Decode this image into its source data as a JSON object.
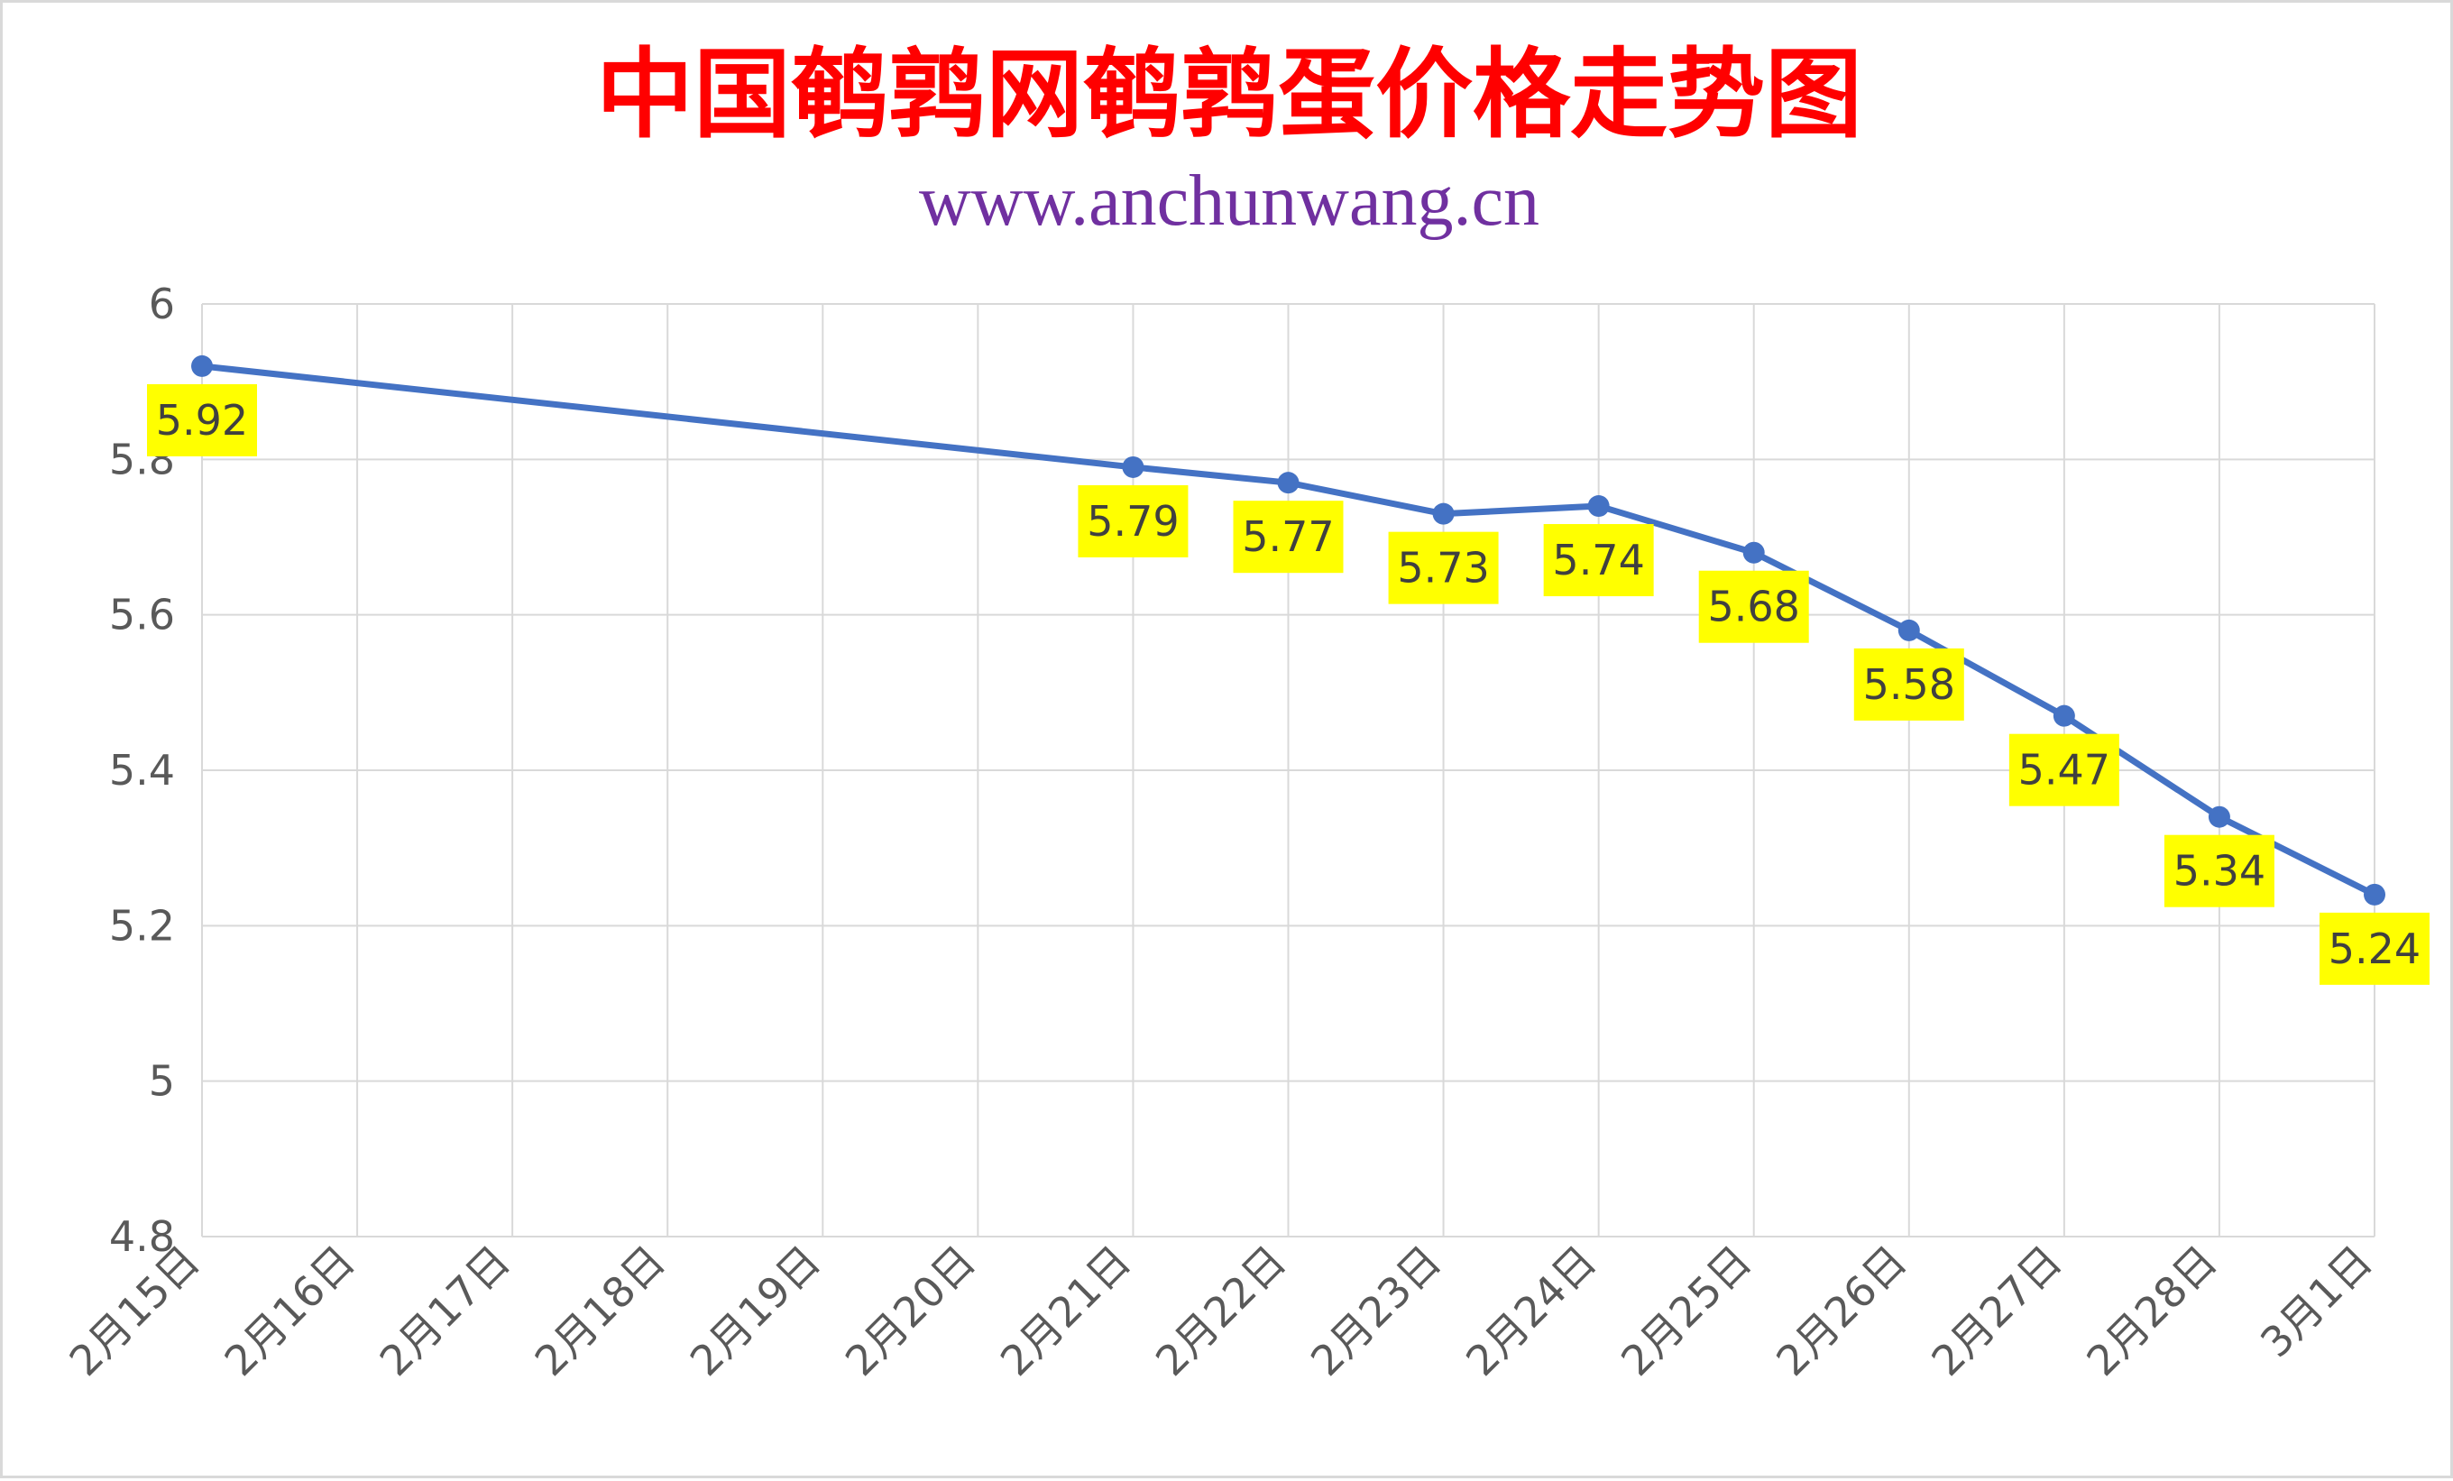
{
  "title": "中国鹌鹑网鹌鹑蛋价格走势图",
  "subtitle": "www.anchunwang.cn",
  "colors": {
    "title": "#ff0000",
    "subtitle": "#7030a0",
    "line": "#4472c4",
    "label_background": "#ffff00",
    "grid": "#d9d9d9",
    "tick_text": "#595959"
  },
  "chart_data": {
    "type": "line",
    "categories": [
      "2月15日",
      "2月16日",
      "2月17日",
      "2月18日",
      "2月19日",
      "2月20日",
      "2月21日",
      "2月22日",
      "2月23日",
      "2月24日",
      "2月25日",
      "2月26日",
      "2月27日",
      "2月28日",
      "3月1日"
    ],
    "series": [
      {
        "values": [
          5.92,
          null,
          null,
          null,
          null,
          null,
          5.79,
          5.77,
          5.73,
          5.74,
          5.68,
          5.58,
          5.47,
          5.34,
          5.24
        ]
      }
    ],
    "data_labels": [
      "5.92",
      "",
      "",
      "",
      "",
      "",
      "5.79",
      "5.77",
      "5.73",
      "5.74",
      "5.68",
      "5.58",
      "5.47",
      "5.34",
      "5.24"
    ],
    "ylim": [
      4.8,
      6
    ],
    "yticks": [
      4.8,
      5,
      5.2,
      5.4,
      5.6,
      5.8,
      6
    ],
    "ytick_labels": [
      "4.8",
      "5",
      "5.2",
      "5.4",
      "5.6",
      "5.8",
      "6"
    ],
    "grid": true,
    "legend": "none",
    "xlabel": "",
    "ylabel": ""
  }
}
